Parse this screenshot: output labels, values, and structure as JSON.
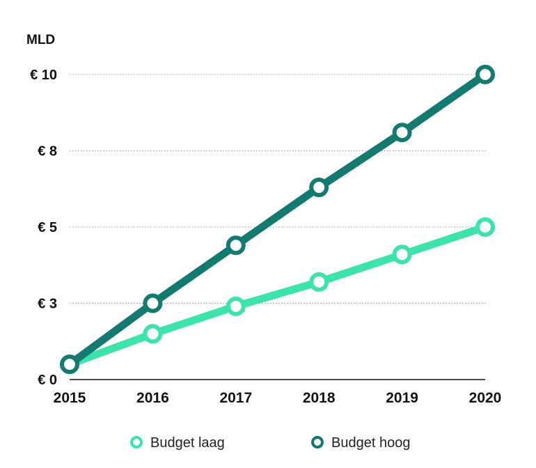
{
  "chart_data": {
    "type": "line",
    "unit_label": "MLD",
    "categories": [
      "2015",
      "2016",
      "2017",
      "2018",
      "2019",
      "2020"
    ],
    "ylim": [
      0,
      10
    ],
    "yticks": [
      {
        "value": 0,
        "label": "€ 0"
      },
      {
        "value": 2.5,
        "label": "€ 3"
      },
      {
        "value": 5,
        "label": "€ 5"
      },
      {
        "value": 7.5,
        "label": "€ 8"
      },
      {
        "value": 10,
        "label": "€ 10"
      }
    ],
    "grid": "horizontal dotted",
    "legend_position": "bottom-center",
    "series": [
      {
        "name": "Budget laag",
        "color": "#3de3ac",
        "values": [
          0.5,
          1.5,
          2.4,
          3.2,
          4.1,
          5.0
        ]
      },
      {
        "name": "Budget hoog",
        "color": "#137a70",
        "values": [
          0.5,
          2.5,
          4.4,
          6.3,
          8.1,
          10.0
        ]
      }
    ]
  }
}
